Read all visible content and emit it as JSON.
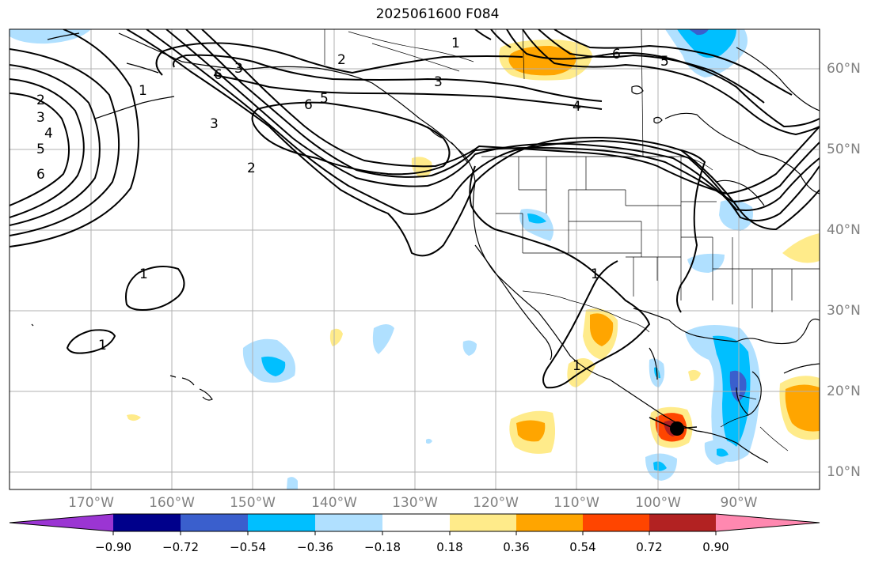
{
  "title": "2025061600 F084",
  "lat_ticks": [
    "60°N",
    "50°N",
    "40°N",
    "30°N",
    "20°N",
    "10°N"
  ],
  "lon_ticks": [
    "170°W",
    "160°W",
    "150°W",
    "140°W",
    "130°W",
    "120°W",
    "110°W",
    "100°W",
    "90°W"
  ],
  "colorbar": {
    "labels": [
      "−0.90",
      "−0.72",
      "−0.54",
      "−0.36",
      "−0.18",
      "0.18",
      "0.36",
      "0.54",
      "0.72",
      "0.90"
    ],
    "colors": [
      "#9b35d3",
      "#00008b",
      "#3a5fcd",
      "#00bfff",
      "#b0e0ff",
      "#ffffff",
      "#ffeb8a",
      "#ffa500",
      "#ff4500",
      "#b22222",
      "#ff88b0"
    ]
  },
  "contour_labels": [
    "1",
    "2",
    "3",
    "4",
    "5",
    "6"
  ],
  "marker": "tropical-cyclone-position"
}
